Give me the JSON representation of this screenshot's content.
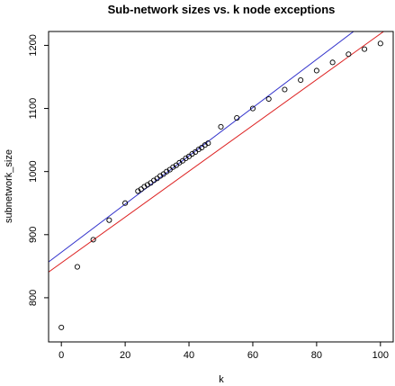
{
  "chart_data": {
    "type": "scatter",
    "title": "Sub-network sizes vs. k node exceptions",
    "xlabel": "k",
    "ylabel": "subnetwork_size",
    "xlim": [
      -4,
      104
    ],
    "ylim": [
      730,
      1222
    ],
    "xticks": [
      0,
      20,
      40,
      60,
      80,
      100
    ],
    "yticks": [
      800,
      900,
      1000,
      1100,
      1200
    ],
    "grid": false,
    "points": {
      "x": [
        0,
        5,
        10,
        15,
        20,
        24,
        25,
        26,
        27,
        28,
        29,
        30,
        31,
        32,
        33,
        34,
        35,
        36,
        37,
        38,
        39,
        40,
        41,
        42,
        43,
        44,
        45,
        46,
        50,
        55,
        60,
        65,
        70,
        75,
        80,
        85,
        90,
        95,
        100
      ],
      "y": [
        753,
        849,
        892,
        923,
        950,
        969,
        972,
        976,
        979,
        982,
        986,
        989,
        993,
        996,
        1000,
        1003,
        1007,
        1010,
        1014,
        1017,
        1021,
        1024,
        1028,
        1031,
        1035,
        1038,
        1042,
        1045,
        1071,
        1085,
        1100,
        1115,
        1130,
        1145,
        1160,
        1173,
        1186,
        1194,
        1203
      ]
    },
    "lines": [
      {
        "color": "#3333cc",
        "x": [
          -4,
          104
        ],
        "y": [
          856.7,
          1269.5
        ]
      },
      {
        "color": "#dd2222",
        "x": [
          -4,
          104
        ],
        "y": [
          840.7,
          1232.9
        ]
      }
    ],
    "colors": {
      "points": "#000000",
      "axis": "#000000"
    }
  }
}
